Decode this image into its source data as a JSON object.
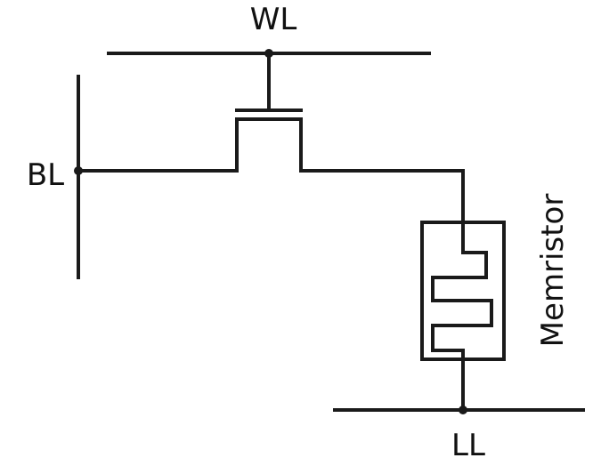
{
  "labels": {
    "word_line": "WL",
    "bit_line": "BL",
    "device": "Memristor",
    "lower_line": "LL"
  },
  "colors": {
    "line": "#1a1a1a",
    "background": "#ffffff"
  }
}
